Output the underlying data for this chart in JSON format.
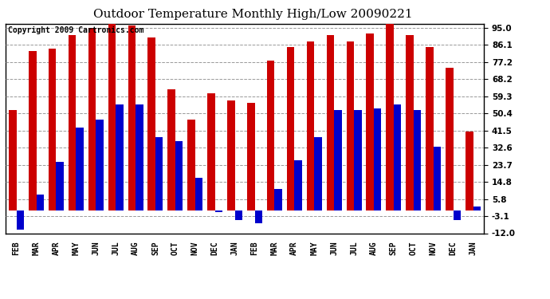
{
  "title": "Outdoor Temperature Monthly High/Low 20090221",
  "copyright": "Copyright 2009 Cartronics.com",
  "months": [
    "FEB",
    "MAR",
    "APR",
    "MAY",
    "JUN",
    "JUL",
    "AUG",
    "SEP",
    "OCT",
    "NOV",
    "DEC",
    "JAN",
    "FEB",
    "MAR",
    "APR",
    "MAY",
    "JUN",
    "JUL",
    "AUG",
    "SEP",
    "OCT",
    "NOV",
    "DEC",
    "JAN"
  ],
  "highs": [
    52,
    83,
    84,
    91,
    95,
    97,
    96,
    90,
    63,
    47,
    61,
    57,
    56,
    78,
    85,
    88,
    91,
    88,
    92,
    97,
    91,
    85,
    74,
    41
  ],
  "lows": [
    -10,
    8,
    25,
    43,
    47,
    55,
    55,
    38,
    36,
    17,
    -1,
    -5,
    -7,
    11,
    26,
    38,
    52,
    52,
    53,
    55,
    52,
    33,
    -5,
    2
  ],
  "high_color": "#cc0000",
  "low_color": "#0000cc",
  "yticks": [
    95.0,
    86.1,
    77.2,
    68.2,
    59.3,
    50.4,
    41.5,
    32.6,
    23.7,
    14.8,
    5.8,
    -3.1,
    -12.0
  ],
  "ymin": -12.0,
  "ymax": 97.0,
  "bar_width": 0.38,
  "background_color": "#ffffff",
  "plot_bg_color": "#ffffff",
  "grid_color": "#999999",
  "title_fontsize": 11,
  "copyright_fontsize": 7
}
